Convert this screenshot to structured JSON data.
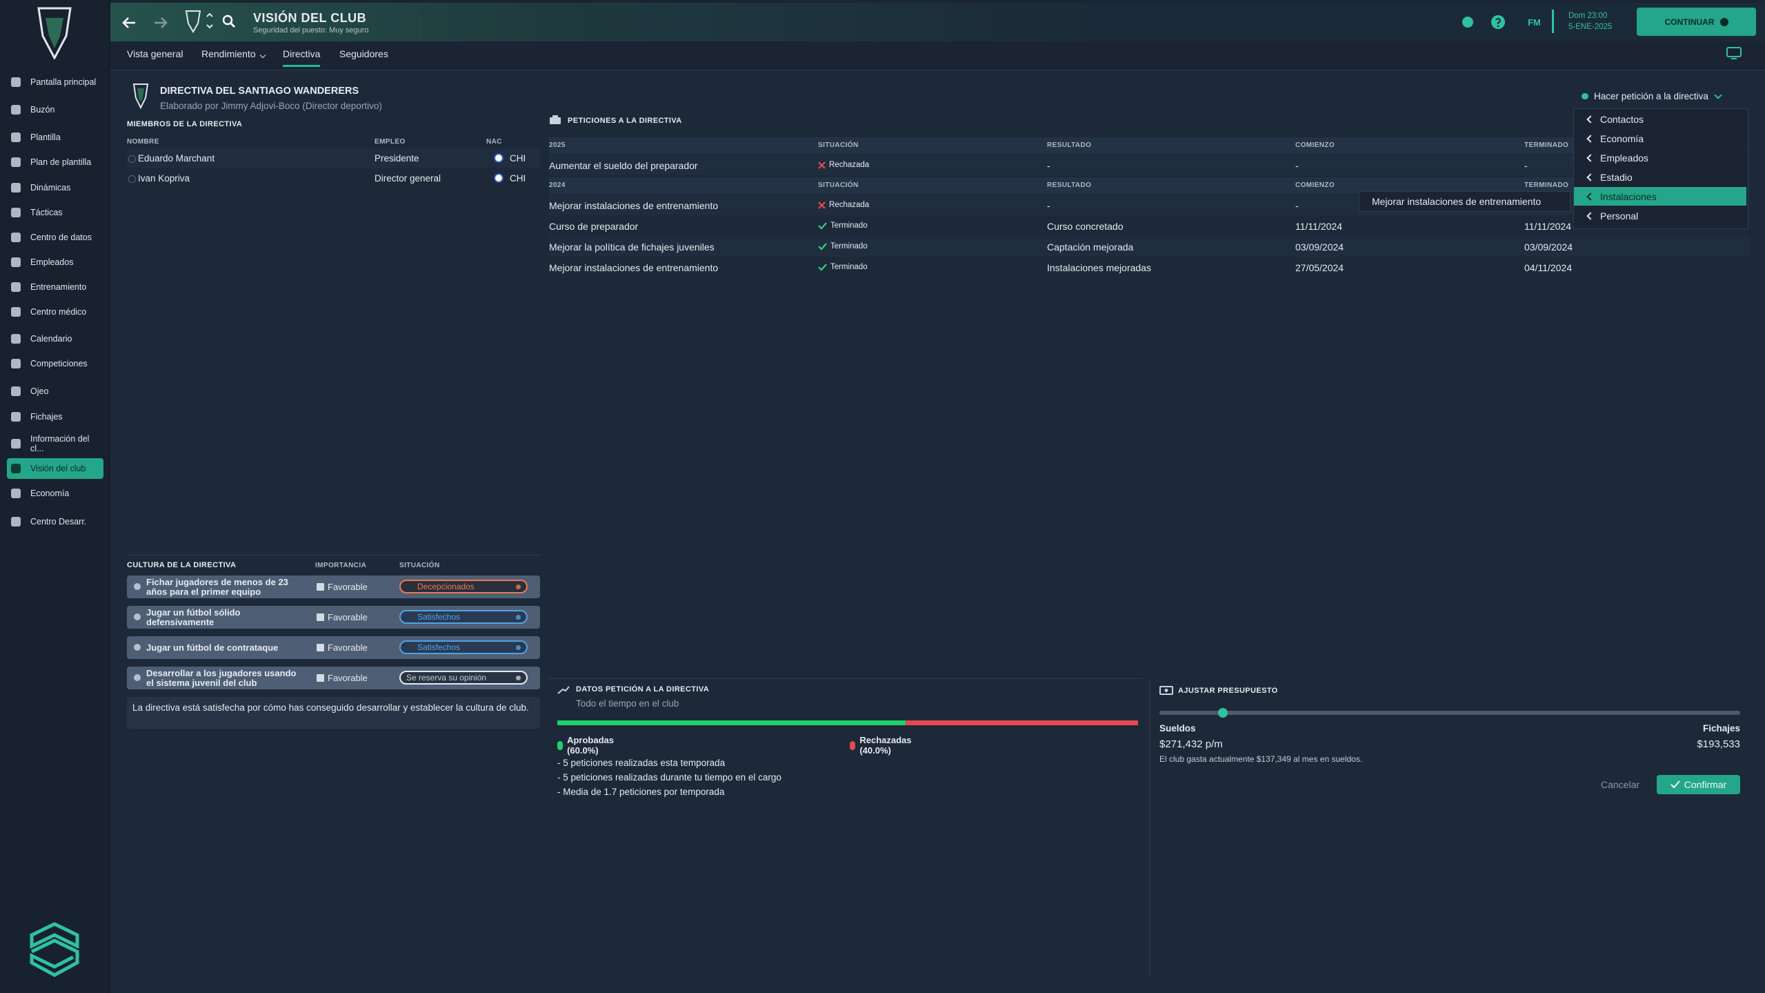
{
  "sidebar": {
    "items": [
      "Pantalla principal",
      "Buzón",
      "Plantilla",
      "Plan de plantilla",
      "Dinámicas",
      "Tácticas",
      "Centro de datos",
      "Empleados",
      "Entrenamiento",
      "Centro médico",
      "Calendario",
      "Competiciones",
      "Ojeo",
      "Fichajes",
      "Información del cl...",
      "Visión del club",
      "Economía",
      "Centro Desarr."
    ],
    "active": 15
  },
  "header": {
    "title": "VISIÓN DEL CLUB",
    "subtitle": "Seguridad del puesto: Muy seguro",
    "tabs": [
      "Vista general",
      "Rendimiento",
      "Directiva",
      "Seguidores"
    ],
    "active_tab": 2,
    "brand": "FM",
    "date_line1": "Dom 23:00",
    "date_line2": "5-ENE-2025",
    "continue": "CONTINUAR"
  },
  "board": {
    "title": "DIRECTIVA DEL SANTIAGO WANDERERS",
    "author": "Elaborado por Jimmy Adjovi-Boco (Director deportivo)",
    "members_title": "MIEMBROS DE LA DIRECTIVA",
    "columns": [
      "NOMBRE",
      "EMPLEO",
      "NAC"
    ],
    "rows": [
      [
        "Eduardo Marchant",
        "Presidente",
        "CHI"
      ],
      [
        "Ivan Kopriva",
        "Director general",
        "CHI"
      ]
    ]
  },
  "requests": {
    "title": "PETICIONES A LA DIRECTIVA",
    "groups": [
      {
        "year": "2025",
        "columns": [
          "SITUACIÓN",
          "RESULTADO",
          "COMIENZO",
          "TERMINADO"
        ],
        "rows": [
          {
            "request": "Aumentar el sueldo del preparador",
            "status": "Rechazada",
            "ok": false,
            "result": "-",
            "start": "-",
            "end": "-"
          }
        ]
      },
      {
        "year": "2024",
        "columns": [
          "SITUACIÓN",
          "RESULTADO",
          "COMIENZO",
          "TERMINADO"
        ],
        "rows": [
          {
            "request": "Mejorar instalaciones de entrenamiento",
            "status": "Rechazada",
            "ok": false,
            "result": "-",
            "start": "-",
            "end": null
          },
          {
            "request": "Curso de preparador",
            "status": "Terminado",
            "ok": true,
            "result": "Curso concretado",
            "start": "11/11/2024",
            "end": "11/11/2024"
          },
          {
            "request": "Mejorar la política de fichajes juveniles",
            "status": "Terminado",
            "ok": true,
            "result": "Captación mejorada",
            "start": "03/09/2024",
            "end": "03/09/2024"
          },
          {
            "request": "Mejorar instalaciones de entrenamiento",
            "status": "Terminado",
            "ok": true,
            "result": "Instalaciones mejoradas",
            "start": "27/05/2024",
            "end": "04/11/2024"
          }
        ]
      }
    ]
  },
  "dropdown": {
    "button": "Hacer petición a la directiva",
    "items": [
      "Contactos",
      "Economía",
      "Empleados",
      "Estadio",
      "Instalaciones",
      "Personal"
    ],
    "highlighted": 4,
    "submenu": "Mejorar instalaciones de entrenamiento"
  },
  "culture": {
    "title": "CULTURA DE LA DIRECTIVA",
    "columns": [
      "IMPORTANCIA",
      "SITUACIÓN"
    ],
    "rows": [
      {
        "text": "Fichar jugadores de menos de 23 años para el primer equipo",
        "importance": "Favorable",
        "status": "Decepcionados",
        "tone": "negative"
      },
      {
        "text": "Jugar un fútbol sólido defensivamente",
        "importance": "Favorable",
        "status": "Satisfechos",
        "tone": "positive"
      },
      {
        "text": "Jugar un fútbol de contrataque",
        "importance": "Favorable",
        "status": "Satisfechos",
        "tone": "positive"
      },
      {
        "text": "Desarrollar a los jugadores usando el sistema juvenil del club",
        "importance": "Favorable",
        "status": "Se reserva su opinión",
        "tone": "neutral"
      }
    ],
    "note": "La directiva está satisfecha por cómo has conseguido desarrollar y establecer la cultura de club."
  },
  "stats": {
    "title": "DATOS PETICIÓN A LA DIRECTIVA",
    "subtitle": "Todo el tiempo en el club",
    "approved": {
      "label": "Aprobadas (60.0%)",
      "value": 60,
      "color": "#1fd16a"
    },
    "rejected": {
      "label": "Rechazadas (40.0%)",
      "value": 40,
      "color": "#e5484d"
    },
    "bullets": [
      "- 5 peticiones realizadas esta temporada",
      "- 5 peticiones realizadas durante tu tiempo en el cargo",
      "- Media de 1.7 peticiones por temporada"
    ]
  },
  "budget": {
    "title": "AJUSTAR PRESUPUESTO",
    "wages_label": "Sueldos",
    "wages": "$271,432 p/m",
    "transfers_label": "Fichajes",
    "transfers": "$193,533",
    "note": "El club gasta actualmente $137,349 al mes en sueldos.",
    "cancel": "Cancelar",
    "confirm": "Confirmar"
  }
}
